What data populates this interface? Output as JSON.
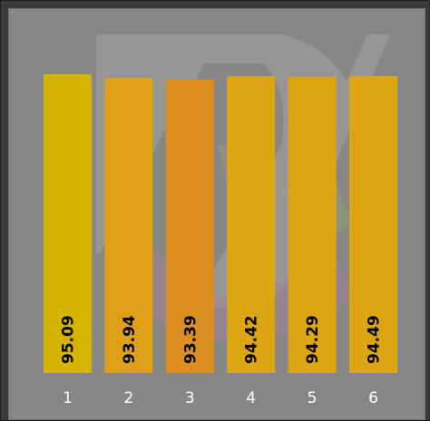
{
  "chart_data": {
    "type": "bar",
    "categories": [
      "1",
      "2",
      "3",
      "4",
      "5",
      "6"
    ],
    "values": [
      95.09,
      93.94,
      93.39,
      94.42,
      94.29,
      94.49
    ],
    "value_labels": [
      "95.09",
      "93.94",
      "93.39",
      "94.42",
      "94.29",
      "94.49"
    ],
    "ylim": [
      0,
      95.09
    ],
    "grid": false,
    "legend": "none",
    "title": "",
    "xlabel": "",
    "ylabel": ""
  },
  "colors": {
    "background": "#878787",
    "bars": [
      "#d4b400",
      "#df9f17",
      "#dc8f20",
      "#dea512",
      "#dea512",
      "#dea512"
    ],
    "value_label": "#000000",
    "tick_label": "#ffffff"
  },
  "watermark_icon": "logo-watermark-icon"
}
